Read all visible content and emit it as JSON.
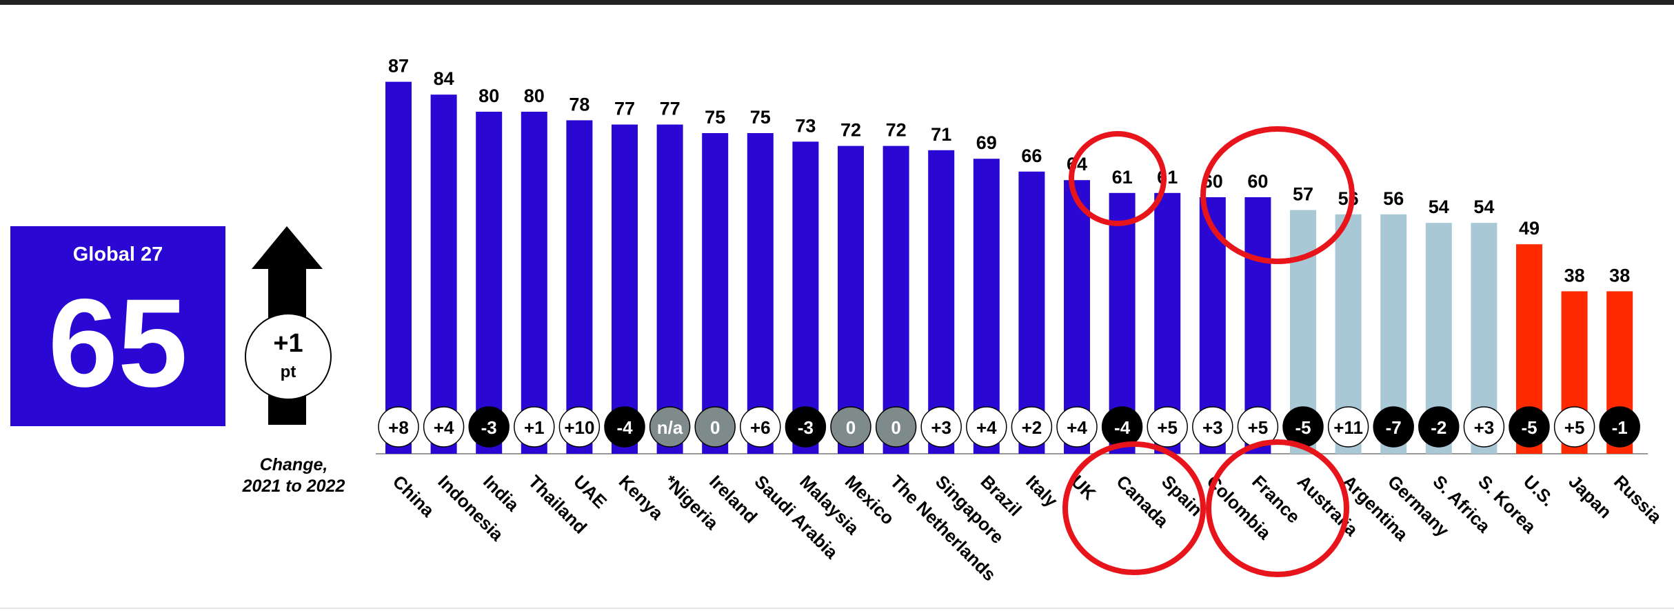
{
  "chart_data": {
    "type": "bar",
    "categories": [
      "China",
      "Indonesia",
      "India",
      "Thailand",
      "UAE",
      "Kenya",
      "*Nigeria",
      "Ireland",
      "Saudi Arabia",
      "Malaysia",
      "Mexico",
      "The Netherlands",
      "Singapore",
      "Brazil",
      "Italy",
      "UK",
      "Canada",
      "Spain",
      "Colombia",
      "France",
      "Australia",
      "Argentina",
      "Germany",
      "S. Africa",
      "S. Korea",
      "U.S.",
      "Japan",
      "Russia"
    ],
    "values": [
      87,
      84,
      80,
      80,
      78,
      77,
      77,
      75,
      75,
      73,
      72,
      72,
      71,
      69,
      66,
      64,
      61,
      61,
      60,
      60,
      57,
      56,
      56,
      54,
      54,
      49,
      38,
      38
    ],
    "colors": [
      "#2b07d4",
      "#2b07d4",
      "#2b07d4",
      "#2b07d4",
      "#2b07d4",
      "#2b07d4",
      "#2b07d4",
      "#2b07d4",
      "#2b07d4",
      "#2b07d4",
      "#2b07d4",
      "#2b07d4",
      "#2b07d4",
      "#2b07d4",
      "#2b07d4",
      "#2b07d4",
      "#2b07d4",
      "#2b07d4",
      "#2b07d4",
      "#2b07d4",
      "#a9c8d6",
      "#a9c8d6",
      "#a9c8d6",
      "#a9c8d6",
      "#a9c8d6",
      "#ff2a00",
      "#ff2a00",
      "#ff2a00"
    ],
    "changes": [
      "+8",
      "+4",
      "-3",
      "+1",
      "+10",
      "-4",
      "n/a",
      "0",
      "+6",
      "-3",
      "0",
      "0",
      "+3",
      "+4",
      "+2",
      "+4",
      "-4",
      "+5",
      "+3",
      "+5",
      "-5",
      "+11",
      "-7",
      "-2",
      "+3",
      "-5",
      "+5",
      "-1"
    ],
    "change_colors": [
      "#ffffff",
      "#ffffff",
      "#000000",
      "#ffffff",
      "#ffffff",
      "#000000",
      "#7f8a8a",
      "#7f8a8a",
      "#ffffff",
      "#000000",
      "#7f8a8a",
      "#7f8a8a",
      "#ffffff",
      "#ffffff",
      "#ffffff",
      "#ffffff",
      "#000000",
      "#ffffff",
      "#ffffff",
      "#ffffff",
      "#000000",
      "#ffffff",
      "#000000",
      "#000000",
      "#ffffff",
      "#000000",
      "#ffffff",
      "#000000"
    ],
    "ylim": [
      0,
      90
    ]
  },
  "summary": {
    "label": "Global 27",
    "value": 65,
    "change": "+1",
    "unit": "pt",
    "caption": [
      "Change,",
      "2021 to 2022"
    ]
  }
}
